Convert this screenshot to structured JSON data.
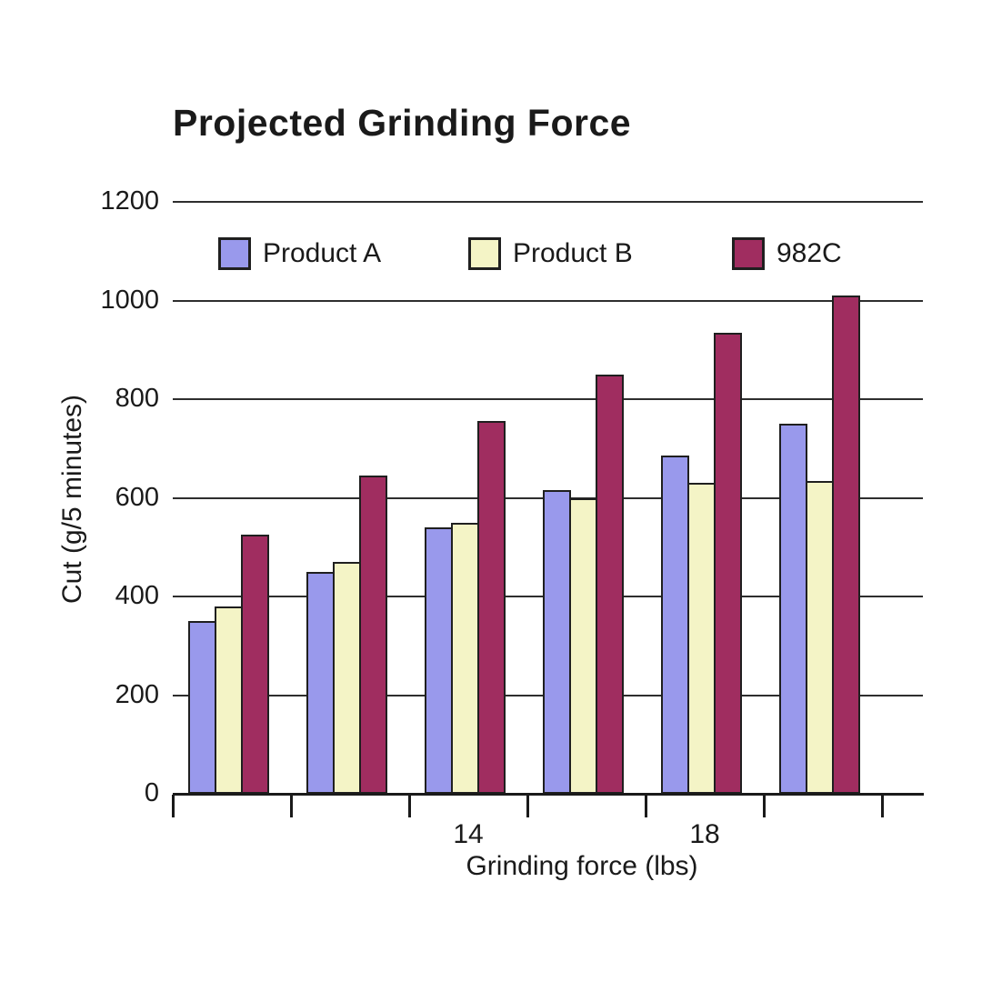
{
  "chart_data": {
    "type": "bar",
    "title": "Projected Grinding Force",
    "xlabel": "Grinding force (lbs)",
    "ylabel": "Cut (g/5 minutes)",
    "ylim": [
      0,
      1200
    ],
    "y_ticks": [
      0,
      200,
      400,
      600,
      800,
      1000,
      1200
    ],
    "x_tick_labels": [
      "",
      "",
      "14",
      "",
      "18",
      ""
    ],
    "grid": true,
    "legend_position": "top-inside",
    "series": [
      {
        "name": "Product A",
        "color": "#9999EC",
        "values": [
          350,
          450,
          540,
          615,
          685,
          750
        ]
      },
      {
        "name": "Product B",
        "color": "#F4F4C6",
        "values": [
          380,
          470,
          550,
          600,
          630,
          635
        ]
      },
      {
        "name": "982C",
        "color": "#A02D60",
        "values": [
          525,
          645,
          755,
          850,
          935,
          1010
        ]
      }
    ],
    "colors": {
      "text": "#1a1a1a",
      "grid": "#2e2e2e",
      "axis": "#1a1a1a",
      "bar_border": "#1f1f1f"
    }
  }
}
